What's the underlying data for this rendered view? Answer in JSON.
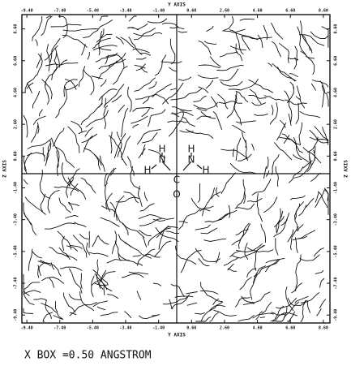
{
  "chart_data": {
    "type": "contour",
    "xlabel": "Y AXIS",
    "ylabel": "Z AXIS",
    "xlim": [
      -9.7,
      9.0
    ],
    "ylim": [
      -9.9,
      9.5
    ],
    "xticks": [
      {
        "value": -9.4,
        "label": "-9.40"
      },
      {
        "value": -7.4,
        "label": "-7.40"
      },
      {
        "value": -5.4,
        "label": "-5.40"
      },
      {
        "value": -3.4,
        "label": "-3.40"
      },
      {
        "value": -1.4,
        "label": "-1.40"
      },
      {
        "value": 0.6,
        "label": "0.60"
      },
      {
        "value": 2.6,
        "label": "2.60"
      },
      {
        "value": 4.6,
        "label": "4.60"
      },
      {
        "value": 6.6,
        "label": "6.60"
      },
      {
        "value": 8.6,
        "label": "8.60"
      }
    ],
    "yticks": [
      {
        "value": -9.4,
        "label": "-9.40"
      },
      {
        "value": -7.4,
        "label": "-7.40"
      },
      {
        "value": -5.4,
        "label": "-5.40"
      },
      {
        "value": -3.4,
        "label": "-3.40"
      },
      {
        "value": -1.4,
        "label": "-1.40"
      },
      {
        "value": 0.6,
        "label": "0.60"
      },
      {
        "value": 2.6,
        "label": "2.60"
      },
      {
        "value": 4.6,
        "label": "4.60"
      },
      {
        "value": 6.6,
        "label": "6.60"
      },
      {
        "value": 8.6,
        "label": "8.60"
      }
    ],
    "annotations": [
      "H",
      "N",
      "H",
      "H",
      "N",
      "H",
      "C",
      "O"
    ],
    "caption": "X BOX =0.50 ANGSTROM"
  }
}
